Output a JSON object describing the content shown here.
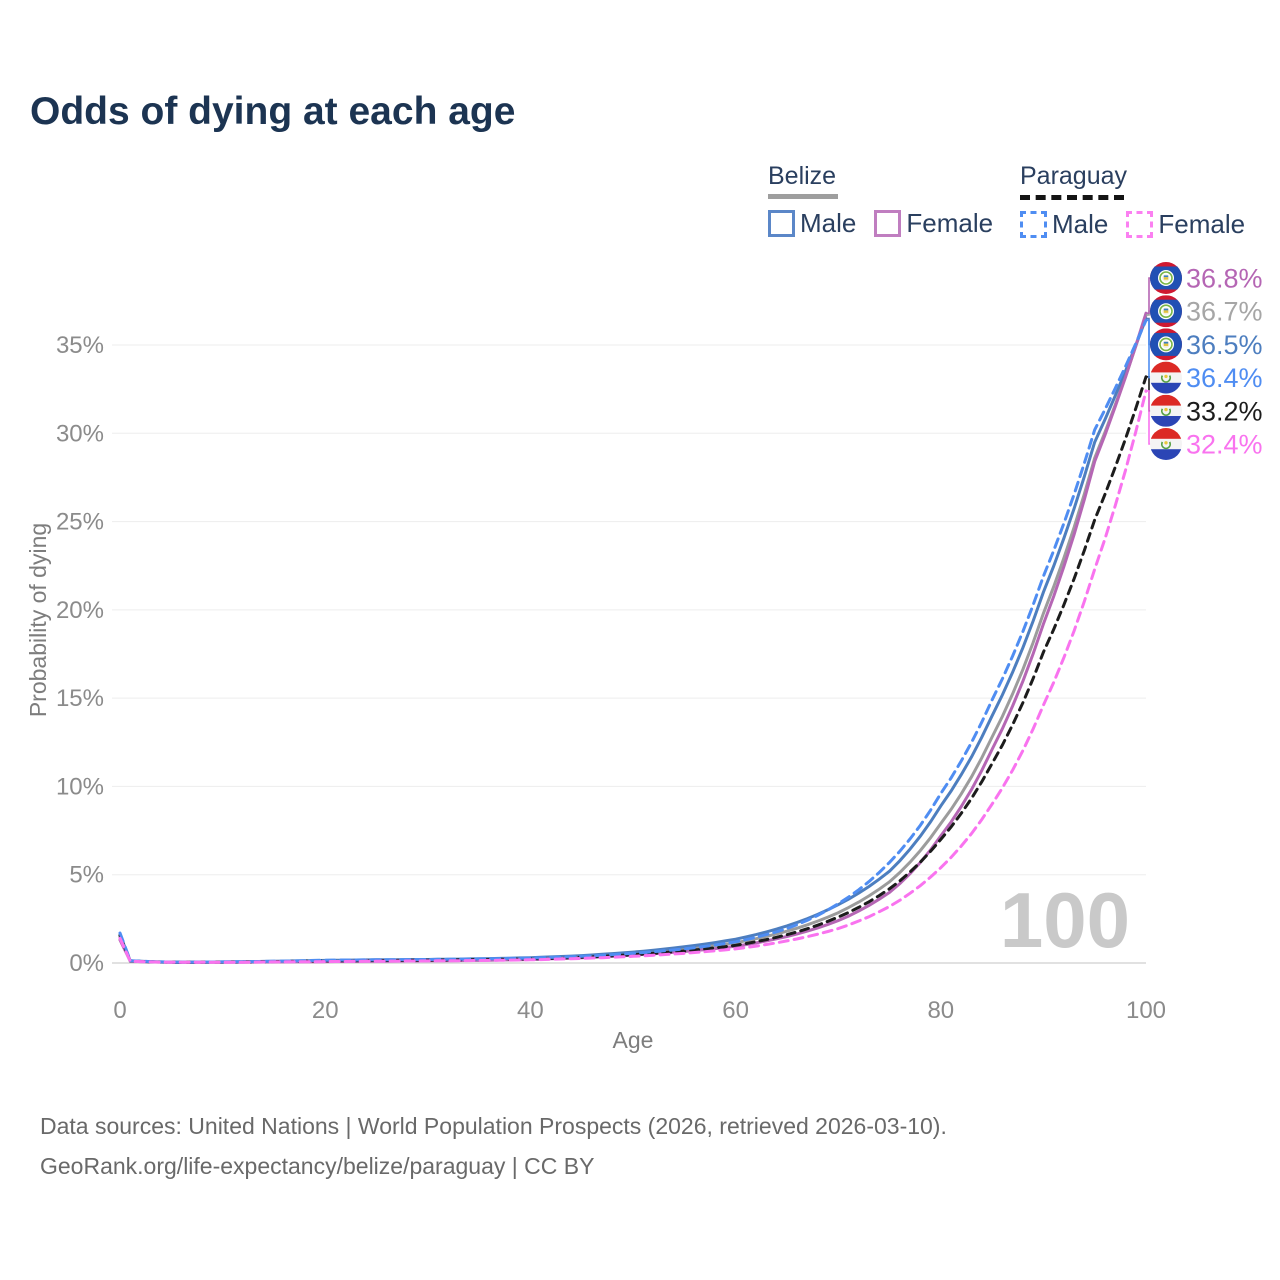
{
  "title": "Odds of dying at each age",
  "watermark": "100",
  "legend": {
    "groups": [
      {
        "country": "Belize",
        "line_style": "solid",
        "underline_color": "#9e9e9e",
        "items": [
          {
            "label": "Male",
            "color": "#4d7ebf"
          },
          {
            "label": "Female",
            "color": "#b566b4"
          }
        ]
      },
      {
        "country": "Paraguay",
        "line_style": "dashed",
        "underline_color": "#141414",
        "items": [
          {
            "label": "Male",
            "color": "#4f8df2"
          },
          {
            "label": "Female",
            "color": "#f973ef"
          }
        ]
      }
    ]
  },
  "footer": {
    "line1": "Data sources: United Nations | World Population Prospects (2026, retrieved 2026-03-10).",
    "line2": "GeoRank.org/life-expectancy/belize/paraguay | CC BY"
  },
  "colors": {
    "title_text": "#1c3452",
    "tick_text": "#8b8b8b",
    "gridline": "#ededed",
    "zero_line": "#d7d7d7",
    "watermark": "#c9c9c9",
    "belize_male": "#4d7ebf",
    "belize_female": "#b566b4",
    "belize_both": "#9c9c9c",
    "paraguay_male": "#4f8df2",
    "paraguay_female": "#f973ef",
    "paraguay_both": "#1c1c1c"
  },
  "chart_data": {
    "type": "line",
    "title": "Odds of dying at each age",
    "xlabel": "Age",
    "ylabel": "Probability of dying",
    "xlim": [
      0,
      100
    ],
    "ylim": [
      0,
      37.5
    ],
    "xticks": [
      0,
      20,
      40,
      60,
      80,
      100
    ],
    "yticks": [
      0,
      5,
      10,
      15,
      20,
      25,
      30,
      35
    ],
    "ytick_suffix": "%",
    "grid": "horizontal",
    "legend_position": "top-right",
    "age_counter": "100",
    "series": [
      {
        "name": "Belize Both sexes",
        "country": "Belize",
        "sex": "Both",
        "flag": "belize",
        "color": "#9c9c9c",
        "label_color": "#a6a6a6",
        "dash": "solid",
        "end_label": "36.7%",
        "slot": 1,
        "points": [
          [
            0,
            1.45
          ],
          [
            1,
            0.11
          ],
          [
            5,
            0.045
          ],
          [
            10,
            0.05
          ],
          [
            15,
            0.08
          ],
          [
            20,
            0.12
          ],
          [
            25,
            0.14
          ],
          [
            30,
            0.16
          ],
          [
            35,
            0.2
          ],
          [
            40,
            0.25
          ],
          [
            45,
            0.36
          ],
          [
            50,
            0.54
          ],
          [
            55,
            0.78
          ],
          [
            60,
            1.15
          ],
          [
            65,
            1.8
          ],
          [
            70,
            2.85
          ],
          [
            75,
            4.6
          ],
          [
            80,
            7.9
          ],
          [
            85,
            12.8
          ],
          [
            90,
            19.8
          ],
          [
            95,
            28.6
          ],
          [
            100,
            36.7
          ]
        ]
      },
      {
        "name": "Belize Male",
        "country": "Belize",
        "sex": "Male",
        "flag": "belize",
        "color": "#4d7ebf",
        "label_color": "#4d7ebf",
        "dash": "solid",
        "end_label": "36.5%",
        "slot": 2,
        "points": [
          [
            0,
            1.6
          ],
          [
            1,
            0.12
          ],
          [
            5,
            0.05
          ],
          [
            10,
            0.06
          ],
          [
            15,
            0.1
          ],
          [
            20,
            0.15
          ],
          [
            25,
            0.18
          ],
          [
            30,
            0.2
          ],
          [
            35,
            0.24
          ],
          [
            40,
            0.3
          ],
          [
            45,
            0.42
          ],
          [
            50,
            0.62
          ],
          [
            55,
            0.92
          ],
          [
            60,
            1.35
          ],
          [
            65,
            2.1
          ],
          [
            70,
            3.3
          ],
          [
            75,
            5.2
          ],
          [
            80,
            8.9
          ],
          [
            85,
            14.0
          ],
          [
            90,
            21.0
          ],
          [
            95,
            29.5
          ],
          [
            100,
            36.5
          ]
        ]
      },
      {
        "name": "Belize Female",
        "country": "Belize",
        "sex": "Female",
        "flag": "belize",
        "color": "#b566b4",
        "label_color": "#b566b4",
        "dash": "solid",
        "end_label": "36.8%",
        "slot": 0,
        "points": [
          [
            0,
            1.3
          ],
          [
            1,
            0.1
          ],
          [
            5,
            0.04
          ],
          [
            10,
            0.04
          ],
          [
            15,
            0.06
          ],
          [
            20,
            0.08
          ],
          [
            25,
            0.1
          ],
          [
            30,
            0.12
          ],
          [
            35,
            0.15
          ],
          [
            40,
            0.2
          ],
          [
            45,
            0.3
          ],
          [
            50,
            0.45
          ],
          [
            55,
            0.65
          ],
          [
            60,
            0.95
          ],
          [
            65,
            1.5
          ],
          [
            70,
            2.4
          ],
          [
            75,
            4.0
          ],
          [
            80,
            7.2
          ],
          [
            85,
            12.1
          ],
          [
            90,
            19.2
          ],
          [
            95,
            28.4
          ],
          [
            100,
            36.8
          ]
        ]
      },
      {
        "name": "Paraguay Both sexes",
        "country": "Paraguay",
        "sex": "Both",
        "flag": "paraguay",
        "color": "#1c1c1c",
        "label_color": "#1c1c1c",
        "dash": "dashed",
        "end_label": "33.2%",
        "slot": 4,
        "points": [
          [
            0,
            1.55
          ],
          [
            1,
            0.12
          ],
          [
            5,
            0.045
          ],
          [
            10,
            0.05
          ],
          [
            15,
            0.08
          ],
          [
            20,
            0.12
          ],
          [
            25,
            0.14
          ],
          [
            30,
            0.16
          ],
          [
            35,
            0.19
          ],
          [
            40,
            0.23
          ],
          [
            45,
            0.32
          ],
          [
            50,
            0.47
          ],
          [
            55,
            0.68
          ],
          [
            60,
            1.0
          ],
          [
            65,
            1.6
          ],
          [
            70,
            2.6
          ],
          [
            75,
            4.2
          ],
          [
            80,
            7.0
          ],
          [
            85,
            11.3
          ],
          [
            90,
            17.6
          ],
          [
            95,
            25.1
          ],
          [
            100,
            33.2
          ]
        ]
      },
      {
        "name": "Paraguay Male",
        "country": "Paraguay",
        "sex": "Male",
        "flag": "paraguay",
        "color": "#4f8df2",
        "label_color": "#4f8df2",
        "dash": "dashed",
        "end_label": "36.4%",
        "slot": 3,
        "points": [
          [
            0,
            1.7
          ],
          [
            1,
            0.13
          ],
          [
            5,
            0.05
          ],
          [
            10,
            0.06
          ],
          [
            15,
            0.1
          ],
          [
            20,
            0.16
          ],
          [
            25,
            0.18
          ],
          [
            30,
            0.2
          ],
          [
            35,
            0.23
          ],
          [
            40,
            0.28
          ],
          [
            45,
            0.38
          ],
          [
            50,
            0.55
          ],
          [
            55,
            0.8
          ],
          [
            60,
            1.2
          ],
          [
            65,
            1.95
          ],
          [
            70,
            3.35
          ],
          [
            75,
            5.7
          ],
          [
            80,
            9.6
          ],
          [
            85,
            14.9
          ],
          [
            90,
            21.9
          ],
          [
            95,
            30.2
          ],
          [
            100,
            36.4
          ]
        ]
      },
      {
        "name": "Paraguay Female",
        "country": "Paraguay",
        "sex": "Female",
        "flag": "paraguay",
        "color": "#f973ef",
        "label_color": "#f973ef",
        "dash": "dashed",
        "end_label": "32.4%",
        "slot": 5,
        "points": [
          [
            0,
            1.4
          ],
          [
            1,
            0.1
          ],
          [
            5,
            0.04
          ],
          [
            10,
            0.04
          ],
          [
            15,
            0.06
          ],
          [
            20,
            0.08
          ],
          [
            25,
            0.1
          ],
          [
            30,
            0.12
          ],
          [
            35,
            0.14
          ],
          [
            40,
            0.18
          ],
          [
            45,
            0.26
          ],
          [
            50,
            0.38
          ],
          [
            55,
            0.55
          ],
          [
            60,
            0.8
          ],
          [
            65,
            1.25
          ],
          [
            70,
            1.95
          ],
          [
            75,
            3.2
          ],
          [
            80,
            5.4
          ],
          [
            85,
            9.0
          ],
          [
            90,
            14.6
          ],
          [
            95,
            22.3
          ],
          [
            100,
            32.4
          ]
        ]
      }
    ]
  }
}
